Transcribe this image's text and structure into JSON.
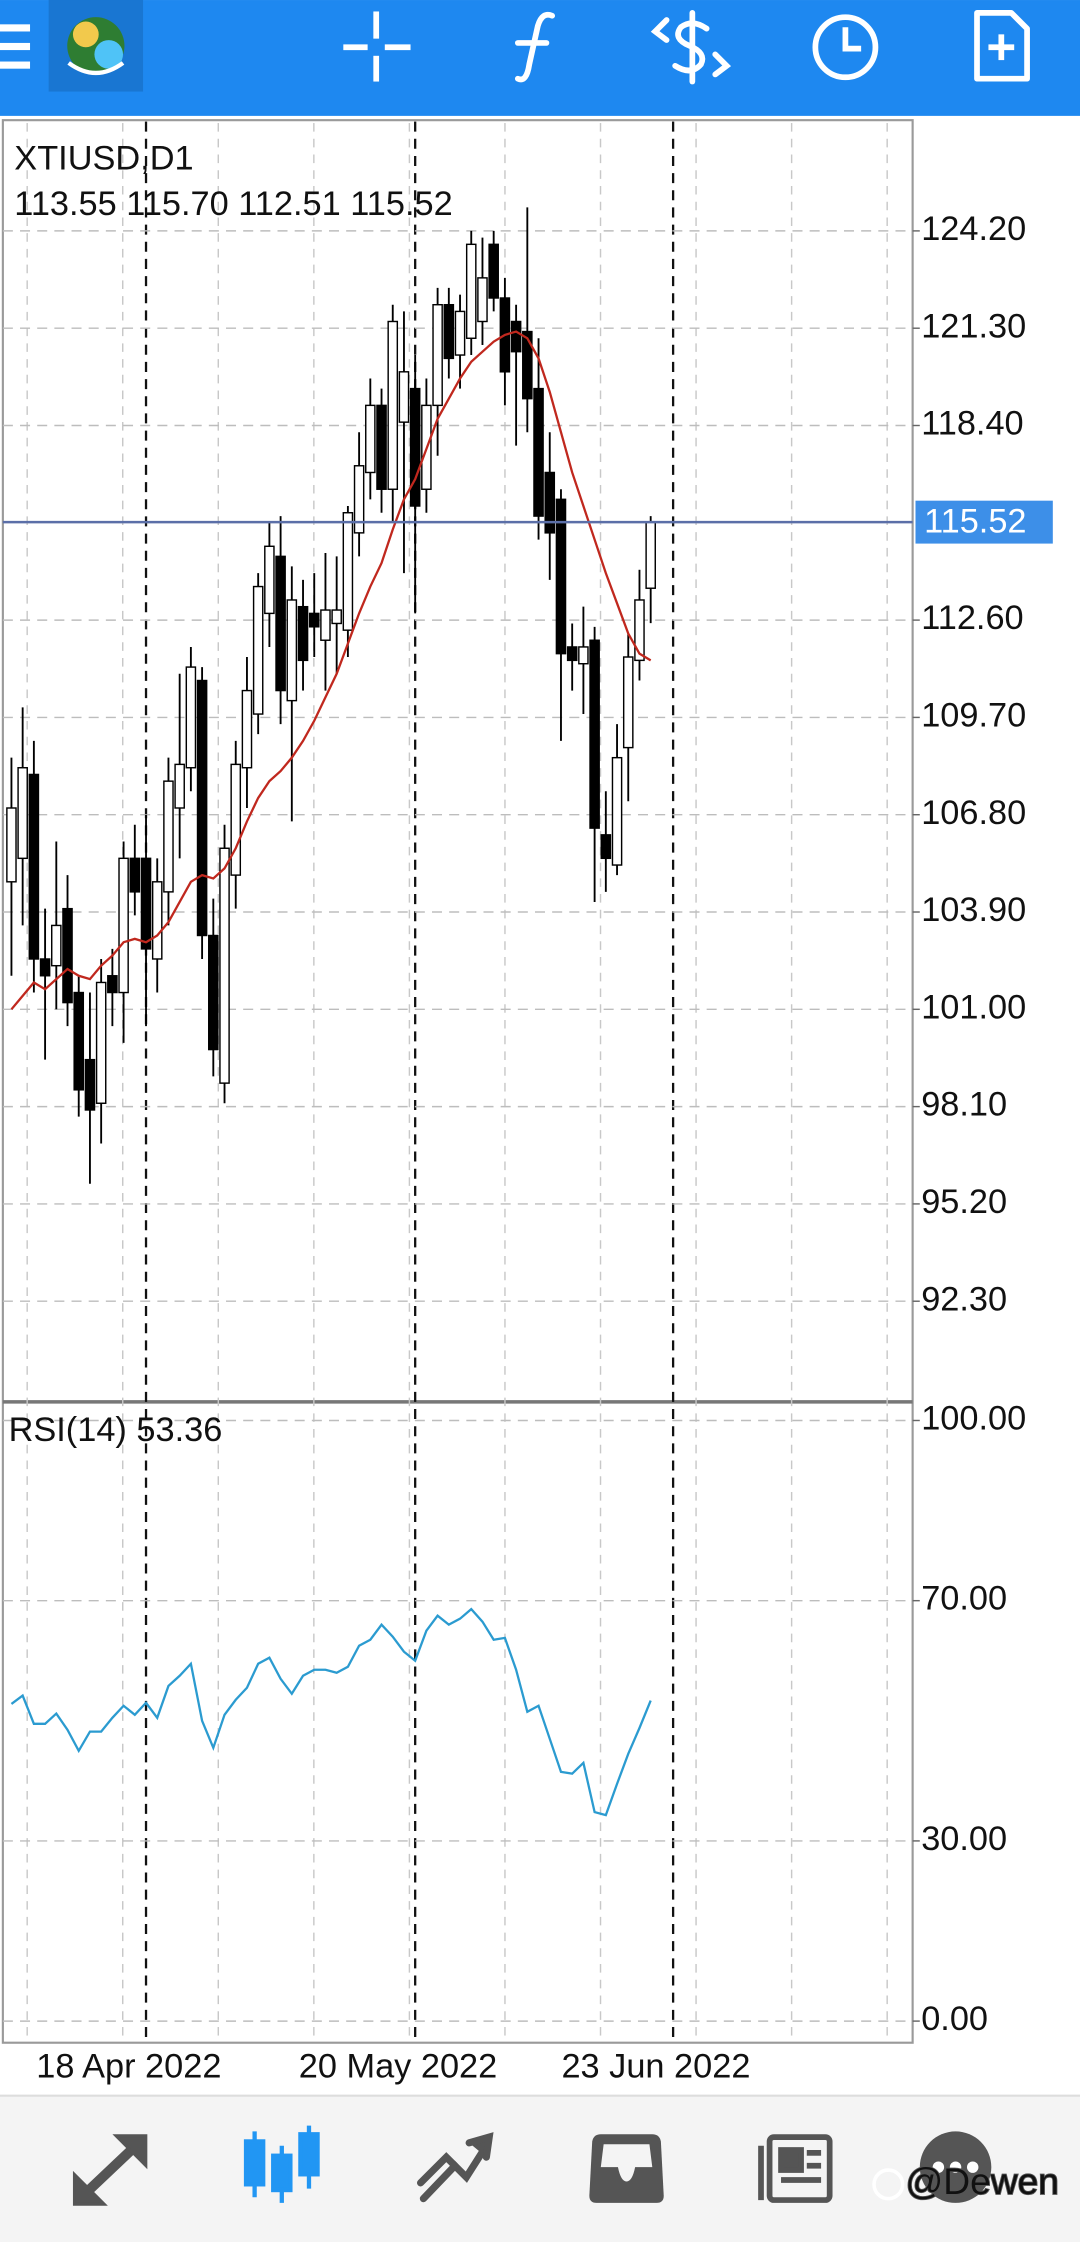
{
  "chart_data": [
    {
      "type": "candlestick",
      "title": "XTIUSD,D1",
      "subtitle": "113.55 115.70 112.51 115.52",
      "categories": [
        null,
        null,
        null,
        null,
        null,
        null,
        null,
        null,
        null,
        null,
        null,
        null,
        "18 Apr 2022",
        null,
        null,
        null,
        null,
        null,
        null,
        null,
        null,
        null,
        null,
        null,
        null,
        null,
        null,
        null,
        null,
        null,
        null,
        null,
        null,
        null,
        null,
        null,
        "20 May 2022",
        null,
        null,
        null,
        null,
        null,
        null,
        null,
        null,
        null,
        null,
        null,
        null,
        null,
        null,
        null,
        null,
        null,
        null,
        null,
        null,
        null,
        null,
        "23 Jun 2022"
      ],
      "open": [
        104.8,
        105.5,
        108.0,
        102.5,
        102.3,
        104.0,
        101.5,
        99.5,
        98.2,
        102.0,
        101.5,
        105.5,
        105.5,
        102.5,
        104.5,
        107.0,
        108.2,
        110.8,
        103.2,
        98.8,
        105.0,
        108.2,
        109.8,
        112.8,
        114.5,
        110.2,
        113.0,
        112.8,
        112.0,
        112.5,
        112.3,
        115.2,
        117.0,
        119.0,
        116.5,
        118.5,
        119.5,
        116.5,
        119.0,
        122.0,
        120.5,
        121.0,
        121.5,
        123.8,
        122.2,
        121.5,
        121.2,
        119.5,
        117.0,
        116.2,
        111.8,
        111.3,
        112.0,
        106.2,
        105.3,
        108.8,
        111.4,
        113.55,
        null,
        null
      ],
      "high": [
        108.5,
        110.0,
        109.0,
        104.0,
        106.0,
        105.0,
        102.0,
        101.5,
        102.5,
        102.8,
        106.0,
        106.5,
        106.8,
        105.5,
        108.5,
        111.0,
        111.8,
        111.2,
        104.3,
        106.5,
        109.0,
        111.5,
        114.0,
        115.5,
        115.7,
        114.2,
        113.8,
        114.0,
        114.6,
        114.5,
        116.0,
        118.2,
        119.8,
        119.5,
        122.0,
        121.8,
        120.5,
        119.8,
        122.5,
        122.5,
        122.3,
        124.2,
        124.0,
        124.2,
        122.8,
        122.0,
        124.9,
        121.0,
        118.2,
        116.5,
        112.5,
        113.0,
        112.4,
        107.5,
        109.5,
        112.2,
        114.1,
        115.7,
        null,
        null
      ],
      "low": [
        102.0,
        103.5,
        101.5,
        99.5,
        101.0,
        100.5,
        97.8,
        95.8,
        97.0,
        100.5,
        100.0,
        103.8,
        100.5,
        101.5,
        103.5,
        105.5,
        107.5,
        102.5,
        99.0,
        98.2,
        104.0,
        107.0,
        109.2,
        111.8,
        109.5,
        106.6,
        110.5,
        111.5,
        110.5,
        111.0,
        111.5,
        114.5,
        116.2,
        115.8,
        115.5,
        114.0,
        112.8,
        115.8,
        117.5,
        119.8,
        119.5,
        120.5,
        120.8,
        121.8,
        119.0,
        117.8,
        118.2,
        115.0,
        113.8,
        109.0,
        110.5,
        109.8,
        104.2,
        104.5,
        105.0,
        107.2,
        110.8,
        112.51,
        null,
        null
      ],
      "close": [
        107.0,
        108.2,
        102.5,
        102.0,
        103.5,
        101.2,
        98.6,
        98.0,
        101.8,
        101.5,
        105.5,
        104.5,
        102.8,
        104.8,
        107.8,
        108.3,
        111.2,
        103.2,
        99.8,
        105.8,
        108.3,
        110.5,
        113.6,
        114.8,
        110.5,
        113.2,
        111.4,
        112.4,
        112.9,
        112.9,
        115.8,
        117.2,
        119.0,
        116.5,
        121.5,
        120.0,
        116.0,
        119.0,
        122.0,
        120.4,
        121.8,
        123.8,
        122.8,
        122.2,
        120.0,
        120.6,
        119.2,
        115.7,
        115.2,
        111.6,
        111.4,
        111.8,
        106.4,
        105.5,
        108.5,
        111.5,
        113.2,
        115.52,
        null,
        null
      ],
      "series": [
        {
          "color": "#c0281e",
          "values": [
            101.0,
            101.4,
            101.8,
            101.6,
            101.9,
            102.2,
            102.0,
            101.9,
            102.3,
            102.6,
            103.0,
            103.1,
            103.0,
            103.2,
            103.6,
            104.2,
            104.8,
            105.0,
            104.9,
            105.2,
            105.8,
            106.6,
            107.3,
            107.8,
            108.1,
            108.5,
            109.0,
            109.6,
            110.3,
            111.0,
            111.9,
            112.8,
            113.6,
            114.3,
            115.3,
            116.2,
            116.8,
            117.7,
            118.6,
            119.2,
            119.8,
            120.3,
            120.6,
            120.9,
            121.1,
            121.2,
            121.0,
            120.4,
            119.4,
            118.2,
            117.0,
            116.0,
            115.0,
            114.0,
            113.1,
            112.2,
            111.6,
            111.4,
            null,
            null
          ]
        }
      ],
      "current_price": 115.52,
      "ylim": [
        89.3,
        127.5
      ],
      "yticks": [
        {
          "value": 92.3,
          "label": "92.30"
        },
        {
          "value": 95.2,
          "label": "95.20"
        },
        {
          "value": 98.1,
          "label": "98.10"
        },
        {
          "value": 101.0,
          "label": "101.00"
        },
        {
          "value": 103.9,
          "label": "103.90"
        },
        {
          "value": 106.8,
          "label": "106.80"
        },
        {
          "value": 109.7,
          "label": "109.70"
        },
        {
          "value": 112.6,
          "label": "112.60"
        },
        {
          "value": 118.4,
          "label": "118.40"
        },
        {
          "value": 121.3,
          "label": "121.30"
        },
        {
          "value": 124.2,
          "label": "124.20"
        }
      ],
      "grid": true
    },
    {
      "type": "line",
      "title": "RSI(14) 53.36",
      "series": [
        {
          "color": "#2b9bd0",
          "values": [
            52.8,
            54.2,
            49.5,
            49.5,
            51.2,
            48.5,
            45.0,
            48.2,
            48.2,
            50.5,
            52.5,
            51.0,
            53.0,
            50.5,
            55.8,
            57.5,
            59.5,
            50.0,
            45.5,
            51.0,
            53.5,
            55.5,
            59.5,
            60.5,
            57.0,
            54.5,
            57.5,
            58.5,
            58.5,
            58.0,
            59.0,
            62.5,
            63.5,
            66.0,
            64.0,
            61.5,
            60.0,
            65.0,
            67.5,
            66.0,
            67.0,
            68.6,
            66.5,
            63.5,
            63.8,
            58.5,
            51.5,
            52.5,
            47.0,
            41.5,
            41.2,
            43.0,
            34.8,
            34.3,
            39.5,
            44.5,
            48.8,
            53.36,
            null,
            null
          ]
        }
      ],
      "ylim": [
        -3.6,
        103.1
      ],
      "yticks": [
        {
          "value": 0,
          "label": "0.00"
        },
        {
          "value": 30,
          "label": "30.00"
        },
        {
          "value": 70,
          "label": "70.00"
        },
        {
          "value": 100,
          "label": "100.00"
        }
      ],
      "grid": true
    }
  ],
  "watermark": "@Dewen"
}
